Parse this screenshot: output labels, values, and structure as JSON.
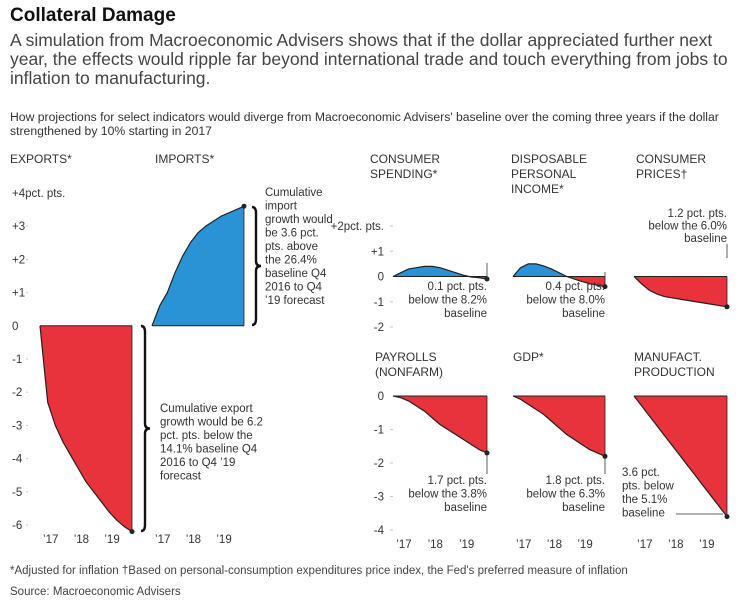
{
  "header": {
    "title": "Collateral Damage",
    "subtitle": "A simulation from Macroeconomic Advisers shows that if the dollar appreciated further next year, the effects would ripple far beyond international trade and touch everything from jobs to inflation to manufacturing.",
    "intro": "How projections for select indicators would diverge from Macroeconomic Advisers' baseline over the coming three years if the dollar strengthened by 10% starting in 2017"
  },
  "colors": {
    "positive": "#2a93d5",
    "negative": "#e8323c",
    "axis": "#333333",
    "grid": "#c8c8c8",
    "text": "#333333"
  },
  "footnote": "*Adjusted for inflation †Based on personal-consumption expenditures price index, the Fed's preferred measure of inflation",
  "source": "Source: Macroeconomic Advisers",
  "chart_data": [
    {
      "id": "exports",
      "type": "area",
      "title_lines": [
        "EXPORTS*"
      ],
      "unit": "percentage points",
      "x": [
        2016.75,
        2017.0,
        2017.25,
        2017.5,
        2017.75,
        2018.0,
        2018.25,
        2018.5,
        2018.75,
        2019.0,
        2019.25,
        2019.5,
        2019.75
      ],
      "y": [
        0,
        -2.3,
        -3.0,
        -3.5,
        -3.9,
        -4.3,
        -4.7,
        -5.0,
        -5.3,
        -5.6,
        -5.85,
        -6.05,
        -6.2
      ],
      "ylim": [
        -6,
        4
      ],
      "yticks": [
        {
          "v": 4,
          "label": "+4pct. pts."
        },
        {
          "v": 3,
          "label": "+3"
        },
        {
          "v": 2,
          "label": "+2"
        },
        {
          "v": 1,
          "label": "+1"
        },
        {
          "v": 0,
          "label": "0"
        },
        {
          "v": -1,
          "label": "-1"
        },
        {
          "v": -2,
          "label": "-2"
        },
        {
          "v": -3,
          "label": "-3"
        },
        {
          "v": -4,
          "label": "-4"
        },
        {
          "v": -5,
          "label": "-5"
        },
        {
          "v": -6,
          "label": "-6"
        }
      ],
      "xticks": [
        {
          "v": 2017.1,
          "label": "’17"
        },
        {
          "v": 2018.1,
          "label": "’18"
        },
        {
          "v": 2019.1,
          "label": "’19"
        }
      ],
      "annotation": [
        "Cumulative export",
        "growth would be 6.2",
        "pct. pts. below the",
        "14.1% baseline Q4",
        "2016 to Q4 ’19",
        "forecast"
      ]
    },
    {
      "id": "imports",
      "type": "area",
      "title_lines": [
        "IMPORTS*"
      ],
      "unit": "percentage points",
      "x": [
        2016.75,
        2017.0,
        2017.25,
        2017.5,
        2017.75,
        2018.0,
        2018.25,
        2018.5,
        2018.75,
        2019.0,
        2019.25,
        2019.5,
        2019.75
      ],
      "y": [
        0,
        0.6,
        1.0,
        1.6,
        2.1,
        2.5,
        2.8,
        3.0,
        3.15,
        3.3,
        3.4,
        3.5,
        3.6
      ],
      "ylim": [
        -6,
        4
      ],
      "xticks": [
        {
          "v": 2017.1,
          "label": "’17"
        },
        {
          "v": 2018.1,
          "label": "’18"
        },
        {
          "v": 2019.1,
          "label": "’19"
        }
      ],
      "annotation": [
        "Cumulative",
        "import",
        "growth would",
        "be 3.6 pct.",
        "pts. above",
        "the 26.4%",
        "baseline Q4",
        "2016 to Q4",
        "’19 forecast"
      ]
    },
    {
      "id": "consumer_spending",
      "type": "area",
      "title_lines": [
        "CONSUMER",
        "SPENDING*"
      ],
      "unit": "percentage points",
      "x": [
        2016.75,
        2017.0,
        2017.25,
        2017.5,
        2017.75,
        2018.0,
        2018.25,
        2018.5,
        2018.75,
        2019.0,
        2019.25,
        2019.5,
        2019.75
      ],
      "y": [
        0,
        0.15,
        0.3,
        0.35,
        0.4,
        0.4,
        0.35,
        0.25,
        0.15,
        0.05,
        -0.02,
        -0.05,
        -0.1
      ],
      "ylim": [
        -2,
        2
      ],
      "yticks": [
        {
          "v": 2,
          "label": "+2pct. pts."
        },
        {
          "v": 1,
          "label": "+1"
        },
        {
          "v": 0,
          "label": "0"
        },
        {
          "v": -1,
          "label": "-1"
        },
        {
          "v": -2,
          "label": "-2"
        }
      ],
      "annotation": [
        "0.1 pct. pts.",
        "below the 8.2%",
        "baseline"
      ]
    },
    {
      "id": "disposable_income",
      "type": "area",
      "title_lines": [
        "DISPOSABLE",
        "PERSONAL",
        "INCOME*"
      ],
      "unit": "percentage points",
      "x": [
        2016.75,
        2017.0,
        2017.25,
        2017.5,
        2017.75,
        2018.0,
        2018.25,
        2018.5,
        2018.75,
        2019.0,
        2019.25,
        2019.5,
        2019.75
      ],
      "y": [
        0,
        0.35,
        0.5,
        0.5,
        0.42,
        0.3,
        0.15,
        0.0,
        -0.1,
        -0.2,
        -0.28,
        -0.35,
        -0.4
      ],
      "ylim": [
        -2,
        2
      ],
      "annotation": [
        "0.4 pct. pts.",
        "below the 8.0%",
        "baseline"
      ]
    },
    {
      "id": "consumer_prices",
      "type": "area",
      "title_lines": [
        "CONSUMER",
        "PRICES†"
      ],
      "unit": "percentage points",
      "x": [
        2016.75,
        2017.0,
        2017.25,
        2017.5,
        2017.75,
        2018.0,
        2018.25,
        2018.5,
        2018.75,
        2019.0,
        2019.25,
        2019.5,
        2019.75
      ],
      "y": [
        0,
        -0.3,
        -0.55,
        -0.7,
        -0.8,
        -0.85,
        -0.9,
        -0.95,
        -1.0,
        -1.05,
        -1.1,
        -1.15,
        -1.2
      ],
      "ylim": [
        -2,
        2
      ],
      "annotation": [
        "1.2 pct. pts.",
        "below the 6.0%",
        "baseline"
      ]
    },
    {
      "id": "payrolls",
      "type": "area",
      "title_lines": [
        "PAYROLLS",
        "(NONFARM)"
      ],
      "unit": "percentage points",
      "x": [
        2016.75,
        2017.0,
        2017.25,
        2017.5,
        2017.75,
        2018.0,
        2018.25,
        2018.5,
        2018.75,
        2019.0,
        2019.25,
        2019.5,
        2019.75
      ],
      "y": [
        0,
        -0.05,
        -0.15,
        -0.3,
        -0.45,
        -0.65,
        -0.85,
        -1.0,
        -1.15,
        -1.3,
        -1.45,
        -1.6,
        -1.7
      ],
      "ylim": [
        -4,
        0
      ],
      "yticks": [
        {
          "v": 0,
          "label": "0"
        },
        {
          "v": -1,
          "label": "-1"
        },
        {
          "v": -2,
          "label": "-2"
        },
        {
          "v": -3,
          "label": "-3"
        },
        {
          "v": -4,
          "label": "-4"
        }
      ],
      "xticks": [
        {
          "v": 2017.1,
          "label": "’17"
        },
        {
          "v": 2018.1,
          "label": "’18"
        },
        {
          "v": 2019.1,
          "label": "’19"
        }
      ],
      "annotation": [
        "1.7 pct. pts.",
        "below the 3.8%",
        "baseline"
      ]
    },
    {
      "id": "gdp",
      "type": "area",
      "title_lines": [
        "GDP*"
      ],
      "unit": "percentage points",
      "x": [
        2016.75,
        2017.0,
        2017.25,
        2017.5,
        2017.75,
        2018.0,
        2018.25,
        2018.5,
        2018.75,
        2019.0,
        2019.25,
        2019.5,
        2019.75
      ],
      "y": [
        0,
        -0.1,
        -0.25,
        -0.4,
        -0.55,
        -0.75,
        -0.95,
        -1.15,
        -1.3,
        -1.45,
        -1.6,
        -1.7,
        -1.8
      ],
      "ylim": [
        -4,
        0
      ],
      "xticks": [
        {
          "v": 2017.1,
          "label": "’17"
        },
        {
          "v": 2018.1,
          "label": "’18"
        },
        {
          "v": 2019.1,
          "label": "’19"
        }
      ],
      "annotation": [
        "1.8 pct. pts.",
        "below the 6.3%",
        "baseline"
      ]
    },
    {
      "id": "manufacturing",
      "type": "area",
      "title_lines": [
        "MANUFACT.",
        "PRODUCTION"
      ],
      "unit": "percentage points",
      "x": [
        2016.75,
        2017.0,
        2017.25,
        2017.5,
        2017.75,
        2018.0,
        2018.25,
        2018.5,
        2018.75,
        2019.0,
        2019.25,
        2019.5,
        2019.75
      ],
      "y": [
        0,
        -0.3,
        -0.6,
        -0.9,
        -1.2,
        -1.5,
        -1.8,
        -2.1,
        -2.4,
        -2.7,
        -3.0,
        -3.3,
        -3.6
      ],
      "ylim": [
        -4,
        0
      ],
      "xticks": [
        {
          "v": 2017.1,
          "label": "’17"
        },
        {
          "v": 2018.1,
          "label": "’18"
        },
        {
          "v": 2019.1,
          "label": "’19"
        }
      ],
      "annotation": [
        "3.6 pct.",
        "pts. below",
        "the 5.1%",
        "baseline"
      ]
    }
  ]
}
